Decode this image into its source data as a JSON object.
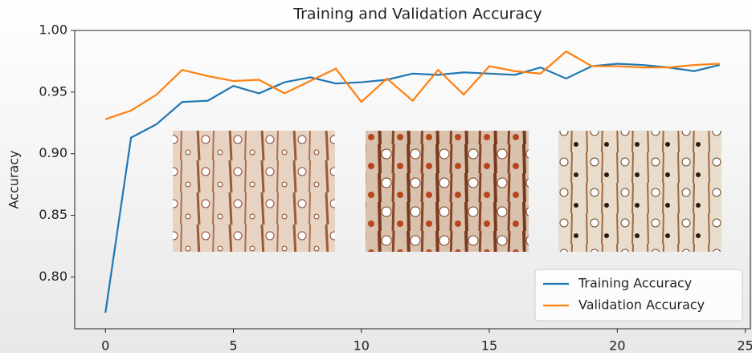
{
  "chart_data": {
    "type": "line",
    "title": "Training and Validation Accuracy",
    "y_label": "Accuracy",
    "x": [
      0,
      1,
      2,
      3,
      4,
      5,
      6,
      7,
      8,
      9,
      10,
      11,
      12,
      13,
      14,
      15,
      16,
      17,
      18,
      19,
      20,
      21,
      22,
      23,
      24
    ],
    "series": [
      {
        "name": "Training Accuracy",
        "color": "#1f77b4",
        "values": [
          0.771,
          0.913,
          0.924,
          0.942,
          0.943,
          0.955,
          0.949,
          0.958,
          0.962,
          0.957,
          0.958,
          0.96,
          0.965,
          0.964,
          0.966,
          0.965,
          0.964,
          0.97,
          0.961,
          0.971,
          0.973,
          0.972,
          0.97,
          0.967,
          0.972
        ]
      },
      {
        "name": "Validation Accuracy",
        "color": "#ff7f0e",
        "values": [
          0.928,
          0.935,
          0.948,
          0.968,
          0.963,
          0.959,
          0.96,
          0.949,
          0.959,
          0.969,
          0.942,
          0.961,
          0.943,
          0.968,
          0.948,
          0.971,
          0.967,
          0.965,
          0.983,
          0.971,
          0.971,
          0.97,
          0.97,
          0.972,
          0.973
        ]
      }
    ],
    "xlim": [
      -1.2,
      25.2
    ],
    "xticks": [
      0,
      5,
      10,
      15,
      20,
      25
    ],
    "ylim": [
      0.758,
      1.0
    ],
    "yticks": [
      {
        "value": 0.8,
        "label": "0.80"
      },
      0.85,
      {
        "value": 0.9,
        "label": "0.90"
      },
      0.95,
      {
        "value": 1.0,
        "label": "1.00"
      }
    ],
    "legend": "lower right",
    "grid": false
  }
}
